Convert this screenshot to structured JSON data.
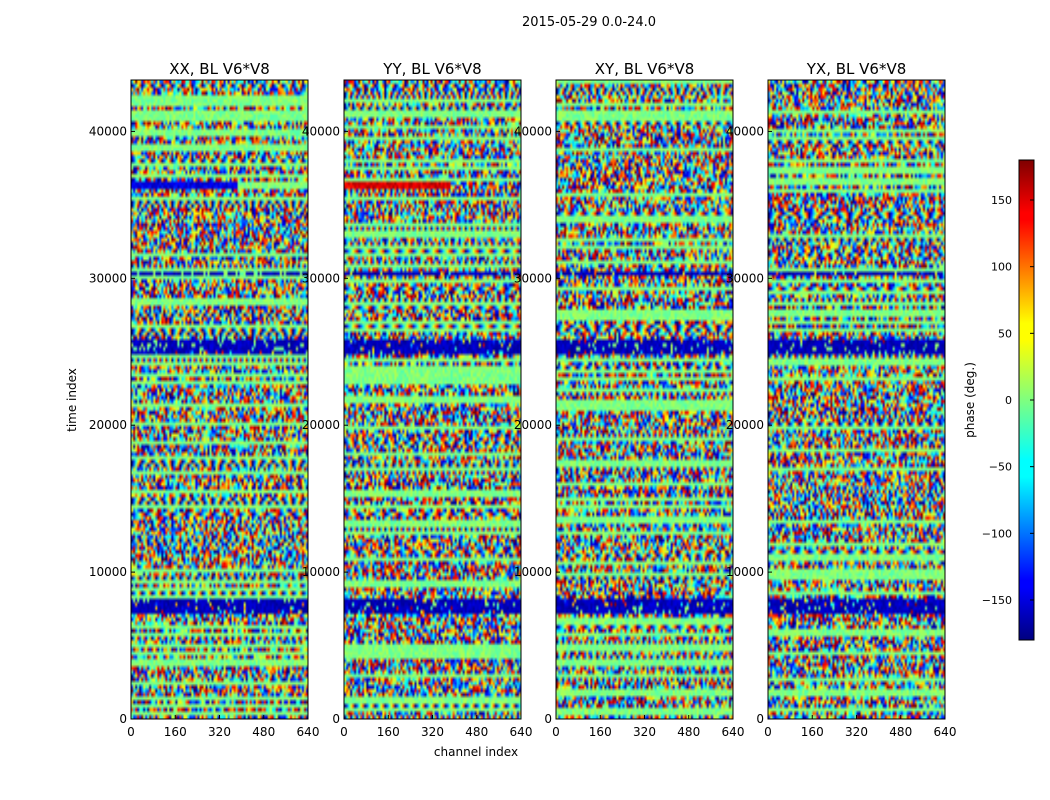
{
  "figure": {
    "suptitle": "2015-05-29 0.0-24.0",
    "colors": {
      "background": "#ffffff",
      "axis": "#000000"
    }
  },
  "chart_data": {
    "type": "heatmap",
    "colormap": "jet",
    "shared_xlabel": "channel index",
    "shared_ylabel": "time index",
    "xlim": [
      0,
      640
    ],
    "ylim": [
      0,
      43500
    ],
    "xticks": [
      0,
      160,
      320,
      480,
      640
    ],
    "yticks": [
      0,
      10000,
      20000,
      30000,
      40000
    ],
    "panels": [
      {
        "title": "XX, BL V6*V8"
      },
      {
        "title": "YY, BL V6*V8"
      },
      {
        "title": "XY, BL V6*V8"
      },
      {
        "title": "YX, BL V6*V8"
      }
    ],
    "colorbar": {
      "label": "phase (deg.)",
      "range": [
        -180,
        180
      ],
      "ticks": [
        -150,
        -100,
        -50,
        0,
        50,
        100,
        150
      ]
    }
  }
}
